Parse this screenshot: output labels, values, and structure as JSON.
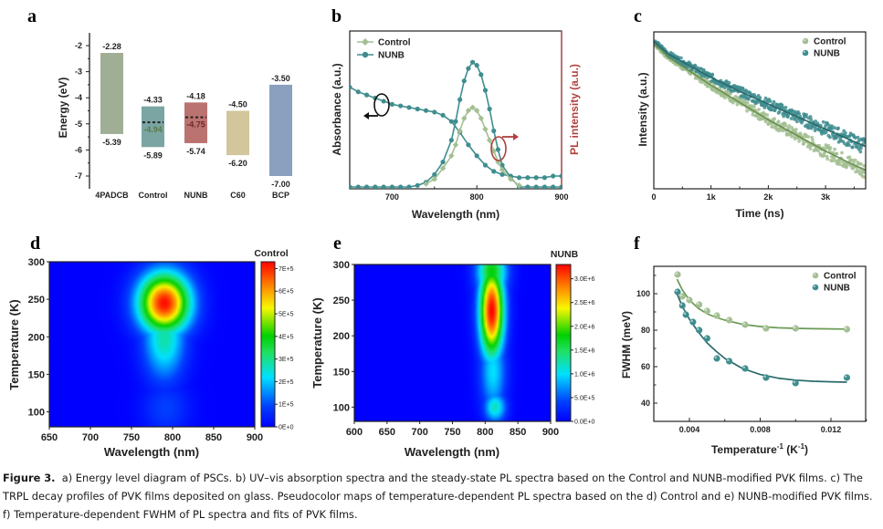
{
  "figure": {
    "caption_label": "Figure 3.",
    "caption_text": "a) Energy level diagram of PSCs. b) UV–vis absorption spectra and the steady-state PL spectra based on the Control and NUNB-modified PVK films. c) The TRPL decay profiles of PVK films deposited on glass. Pseudocolor maps of temperature-dependent PL spectra based on the d) Control and e) NUNB-modified PVK films. f) Temperature-dependent FWHM of PL spectra and fits of PVK films."
  },
  "chart_data": [
    {
      "panel": "a",
      "type": "bar",
      "title": "",
      "xlabel": "",
      "ylabel": "Energy (eV)",
      "ylim": [
        -7.5,
        -1.5
      ],
      "yticks": [
        "-2",
        "-3",
        "-4",
        "-5",
        "-6",
        "-7"
      ],
      "ytick_values": [
        -2,
        -3,
        -4,
        -5,
        -6,
        -7
      ],
      "categories": [
        "4PADCB",
        "Control",
        "NUNB",
        "C60",
        "BCP"
      ],
      "bars": [
        {
          "name": "4PADCB",
          "top": -2.28,
          "bottom": -5.39,
          "top_label": "-2.28",
          "bottom_label": "-5.39",
          "color": "#9fae95"
        },
        {
          "name": "Control",
          "top": -4.33,
          "bottom": -5.89,
          "top_label": "-4.33",
          "bottom_label": "-5.89",
          "color": "#7aa5a2",
          "mid": -4.94,
          "mid_label": "-4.94",
          "mid_color": "#5c7a45"
        },
        {
          "name": "NUNB",
          "top": -4.18,
          "bottom": -5.74,
          "top_label": "-4.18",
          "bottom_label": "-5.74",
          "color": "#bb7371",
          "mid": -4.75,
          "mid_label": "-4.75",
          "mid_color": "#6e2a28"
        },
        {
          "name": "C60",
          "top": -4.5,
          "bottom": -6.2,
          "top_label": "-4.50",
          "bottom_label": "-6.20",
          "color": "#d3c59c"
        },
        {
          "name": "BCP",
          "top": -3.5,
          "bottom": -7.0,
          "top_label": "-3.50",
          "bottom_label": "-7.00",
          "color": "#8ba0bf"
        }
      ]
    },
    {
      "panel": "b",
      "type": "line",
      "xlabel": "Wavelength (nm)",
      "ylabel": "Absorbance (a.u.)",
      "ylabel_right": "PL intensity (a.u.)",
      "ylabel_right_color": "#b0413e",
      "xlim": [
        650,
        900
      ],
      "xticks": [
        "700",
        "800",
        "900"
      ],
      "xtick_values": [
        700,
        800,
        900
      ],
      "ylim": [
        0,
        1
      ],
      "legend": [
        {
          "name": "Control",
          "marker": "diamond",
          "color": "#a3bf93"
        },
        {
          "name": "NUNB",
          "marker": "circle",
          "color": "#3f8d8f"
        }
      ],
      "legend_position": "top-left",
      "series": [
        {
          "name": "NUNB absorbance",
          "color": "#3f8d8f",
          "marker": "circle",
          "x": [
            650,
            660,
            670,
            680,
            690,
            700,
            710,
            720,
            730,
            740,
            750,
            760,
            770,
            780,
            790,
            800,
            810,
            820,
            830,
            840,
            850,
            860,
            870,
            880,
            890,
            900
          ],
          "y": [
            0.64,
            0.61,
            0.59,
            0.57,
            0.55,
            0.53,
            0.52,
            0.51,
            0.5,
            0.49,
            0.48,
            0.46,
            0.42,
            0.35,
            0.27,
            0.2,
            0.14,
            0.1,
            0.08,
            0.07,
            0.06,
            0.06,
            0.06,
            0.06,
            0.07,
            0.07
          ]
        },
        {
          "name": "NUNB PL",
          "color": "#3f8d8f",
          "marker": "circle",
          "x": [
            650,
            660,
            670,
            680,
            690,
            700,
            710,
            720,
            730,
            740,
            750,
            760,
            770,
            775,
            780,
            785,
            790,
            795,
            800,
            805,
            810,
            815,
            820,
            825,
            830,
            840,
            850,
            860,
            870,
            880,
            890,
            900
          ],
          "y": [
            0,
            0,
            0,
            0,
            0,
            0,
            0,
            0,
            0.01,
            0.03,
            0.08,
            0.16,
            0.3,
            0.42,
            0.56,
            0.68,
            0.76,
            0.8,
            0.78,
            0.72,
            0.62,
            0.5,
            0.36,
            0.24,
            0.14,
            0.06,
            0,
            0,
            0,
            0,
            0,
            0
          ]
        },
        {
          "name": "Control PL",
          "color": "#a3bf93",
          "marker": "diamond",
          "x": [
            740,
            750,
            760,
            770,
            775,
            780,
            785,
            790,
            795,
            800,
            805,
            810,
            815,
            820,
            825,
            830,
            840,
            850
          ],
          "y": [
            0.02,
            0.05,
            0.12,
            0.2,
            0.27,
            0.36,
            0.44,
            0.49,
            0.51,
            0.49,
            0.44,
            0.37,
            0.3,
            0.23,
            0.16,
            0.11,
            0.05,
            0.01
          ]
        }
      ]
    },
    {
      "panel": "c",
      "type": "scatter",
      "xlabel": "Time (ns)",
      "ylabel": "Intensity (a.u.)",
      "xlim": [
        0,
        3700
      ],
      "xticks": [
        "0",
        "1k",
        "2k",
        "3k"
      ],
      "xtick_values": [
        0,
        1000,
        2000,
        3000
      ],
      "ylim": [
        0,
        1
      ],
      "legend": [
        {
          "name": "Control",
          "color": "#a3bf93"
        },
        {
          "name": "NUNB",
          "color": "#3f8d8f"
        }
      ],
      "legend_position": "top-right",
      "series": [
        {
          "name": "Control",
          "color": "#a3bf93",
          "fit_color": "#6b8f4f",
          "x": [
            0,
            250,
            500,
            1000,
            1500,
            2000,
            2500,
            3000,
            3500,
            3700
          ],
          "fit": [
            0.93,
            0.84,
            0.78,
            0.66,
            0.55,
            0.44,
            0.34,
            0.24,
            0.15,
            0.12
          ]
        },
        {
          "name": "NUNB",
          "color": "#3f8d8f",
          "fit_color": "#2a6a6c",
          "x": [
            0,
            250,
            500,
            1000,
            1500,
            2000,
            2500,
            3000,
            3500,
            3700
          ],
          "fit": [
            0.94,
            0.86,
            0.81,
            0.71,
            0.62,
            0.54,
            0.46,
            0.38,
            0.3,
            0.27
          ]
        }
      ]
    },
    {
      "panel": "d",
      "type": "heatmap",
      "title": "Control",
      "xlabel": "Wavelength (nm)",
      "ylabel": "Temperature (K)",
      "xlim": [
        650,
        900
      ],
      "ylim": [
        80,
        300
      ],
      "xticks": [
        "650",
        "700",
        "750",
        "800",
        "850",
        "900"
      ],
      "xtick_values": [
        650,
        700,
        750,
        800,
        850,
        900
      ],
      "yticks": [
        "300",
        "250",
        "200",
        "150",
        "100"
      ],
      "ytick_values": [
        300,
        250,
        200,
        150,
        100
      ],
      "colorbar_ticks": [
        "7E+5",
        "6E+5",
        "5E+5",
        "4E+5",
        "3E+5",
        "2E+5",
        "1E+5",
        "0E+0"
      ],
      "colorbar_values": [
        700000,
        600000,
        500000,
        400000,
        300000,
        200000,
        100000,
        0
      ],
      "colorbar_max": 730000,
      "peaks": [
        {
          "wavelength": 790,
          "temperature": 245,
          "value": 720000,
          "sigma_nm": 22,
          "sigma_K": 28
        },
        {
          "wavelength": 790,
          "temperature": 200,
          "value": 280000,
          "sigma_nm": 18,
          "sigma_K": 40
        },
        {
          "wavelength": 792,
          "temperature": 105,
          "value": 90000,
          "sigma_nm": 20,
          "sigma_K": 25
        }
      ]
    },
    {
      "panel": "e",
      "type": "heatmap",
      "title": "NUNB",
      "xlabel": "Wavelength (nm)",
      "ylabel": "Temperature (K)",
      "xlim": [
        600,
        900
      ],
      "ylim": [
        80,
        300
      ],
      "xticks": [
        "600",
        "650",
        "700",
        "750",
        "800",
        "850",
        "900"
      ],
      "xtick_values": [
        600,
        650,
        700,
        750,
        800,
        850,
        900
      ],
      "yticks": [
        "300",
        "250",
        "200",
        "150",
        "100"
      ],
      "ytick_values": [
        300,
        250,
        200,
        150,
        100
      ],
      "colorbar_ticks": [
        "3.0E+6",
        "2.5E+6",
        "2.0E+6",
        "1.5E+6",
        "1.0E+6",
        "5.0E+5",
        "0.0E+0"
      ],
      "colorbar_values": [
        3000000,
        2500000,
        2000000,
        1500000,
        1000000,
        500000,
        0
      ],
      "colorbar_max": 3300000,
      "peaks": [
        {
          "wavelength": 810,
          "temperature": 235,
          "value": 3300000,
          "sigma_nm": 13,
          "sigma_K": 45
        },
        {
          "wavelength": 810,
          "temperature": 290,
          "value": 1800000,
          "sigma_nm": 16,
          "sigma_K": 25
        },
        {
          "wavelength": 812,
          "temperature": 150,
          "value": 1000000,
          "sigma_nm": 14,
          "sigma_K": 40
        },
        {
          "wavelength": 815,
          "temperature": 100,
          "value": 1200000,
          "sigma_nm": 12,
          "sigma_K": 15
        }
      ]
    },
    {
      "panel": "f",
      "type": "scatter",
      "xlabel": "Temperature⁻¹ (K⁻¹)",
      "ylabel": "FWHM (meV)",
      "xlim": [
        0.0025,
        0.0145
      ],
      "ylim": [
        30,
        115
      ],
      "xticks": [
        "0.004",
        "0.008",
        "0.012"
      ],
      "xtick_values": [
        0.004,
        0.008,
        0.012
      ],
      "yticks": [
        "100",
        "80",
        "60",
        "40"
      ],
      "ytick_values": [
        100,
        80,
        60,
        40
      ],
      "legend": [
        {
          "name": "Control",
          "color": "#a3bf93"
        },
        {
          "name": "NUNB",
          "color": "#3f8d8f"
        }
      ],
      "legend_position": "top-right",
      "series": [
        {
          "name": "Control",
          "color": "#a3bf93",
          "fit_color": "#6b9a55",
          "x": [
            0.00333,
            0.0036,
            0.004,
            0.00455,
            0.005,
            0.00555,
            0.00625,
            0.00715,
            0.00833,
            0.01,
            0.0129
          ],
          "y": [
            110.5,
            98.5,
            96.5,
            94,
            90.5,
            88,
            85.5,
            83,
            81,
            81,
            80.5
          ],
          "fit_x": [
            0.0033,
            0.0036,
            0.004,
            0.0045,
            0.005,
            0.0055,
            0.006,
            0.007,
            0.008,
            0.009,
            0.01,
            0.011,
            0.012,
            0.0129
          ],
          "fit_y": [
            108,
            102,
            96.5,
            92,
            89,
            87,
            85.5,
            83.2,
            82,
            81.3,
            81,
            80.8,
            80.7,
            80.6
          ]
        },
        {
          "name": "NUNB",
          "color": "#3f8d8f",
          "fit_color": "#2a6a6c",
          "x": [
            0.00333,
            0.0036,
            0.0038,
            0.0042,
            0.00455,
            0.005,
            0.00555,
            0.00625,
            0.00715,
            0.00833,
            0.01,
            0.0129
          ],
          "y": [
            101,
            93.5,
            88.5,
            84.5,
            80,
            75.5,
            64.5,
            63,
            59,
            54,
            51,
            54
          ],
          "fit_x": [
            0.0033,
            0.0036,
            0.004,
            0.0045,
            0.005,
            0.0055,
            0.006,
            0.007,
            0.008,
            0.009,
            0.01,
            0.011,
            0.012,
            0.0129
          ],
          "fit_y": [
            100,
            93,
            86,
            79,
            73,
            68.5,
            64.5,
            59,
            55.7,
            53.7,
            52.6,
            52,
            51.7,
            51.5
          ]
        }
      ]
    }
  ]
}
